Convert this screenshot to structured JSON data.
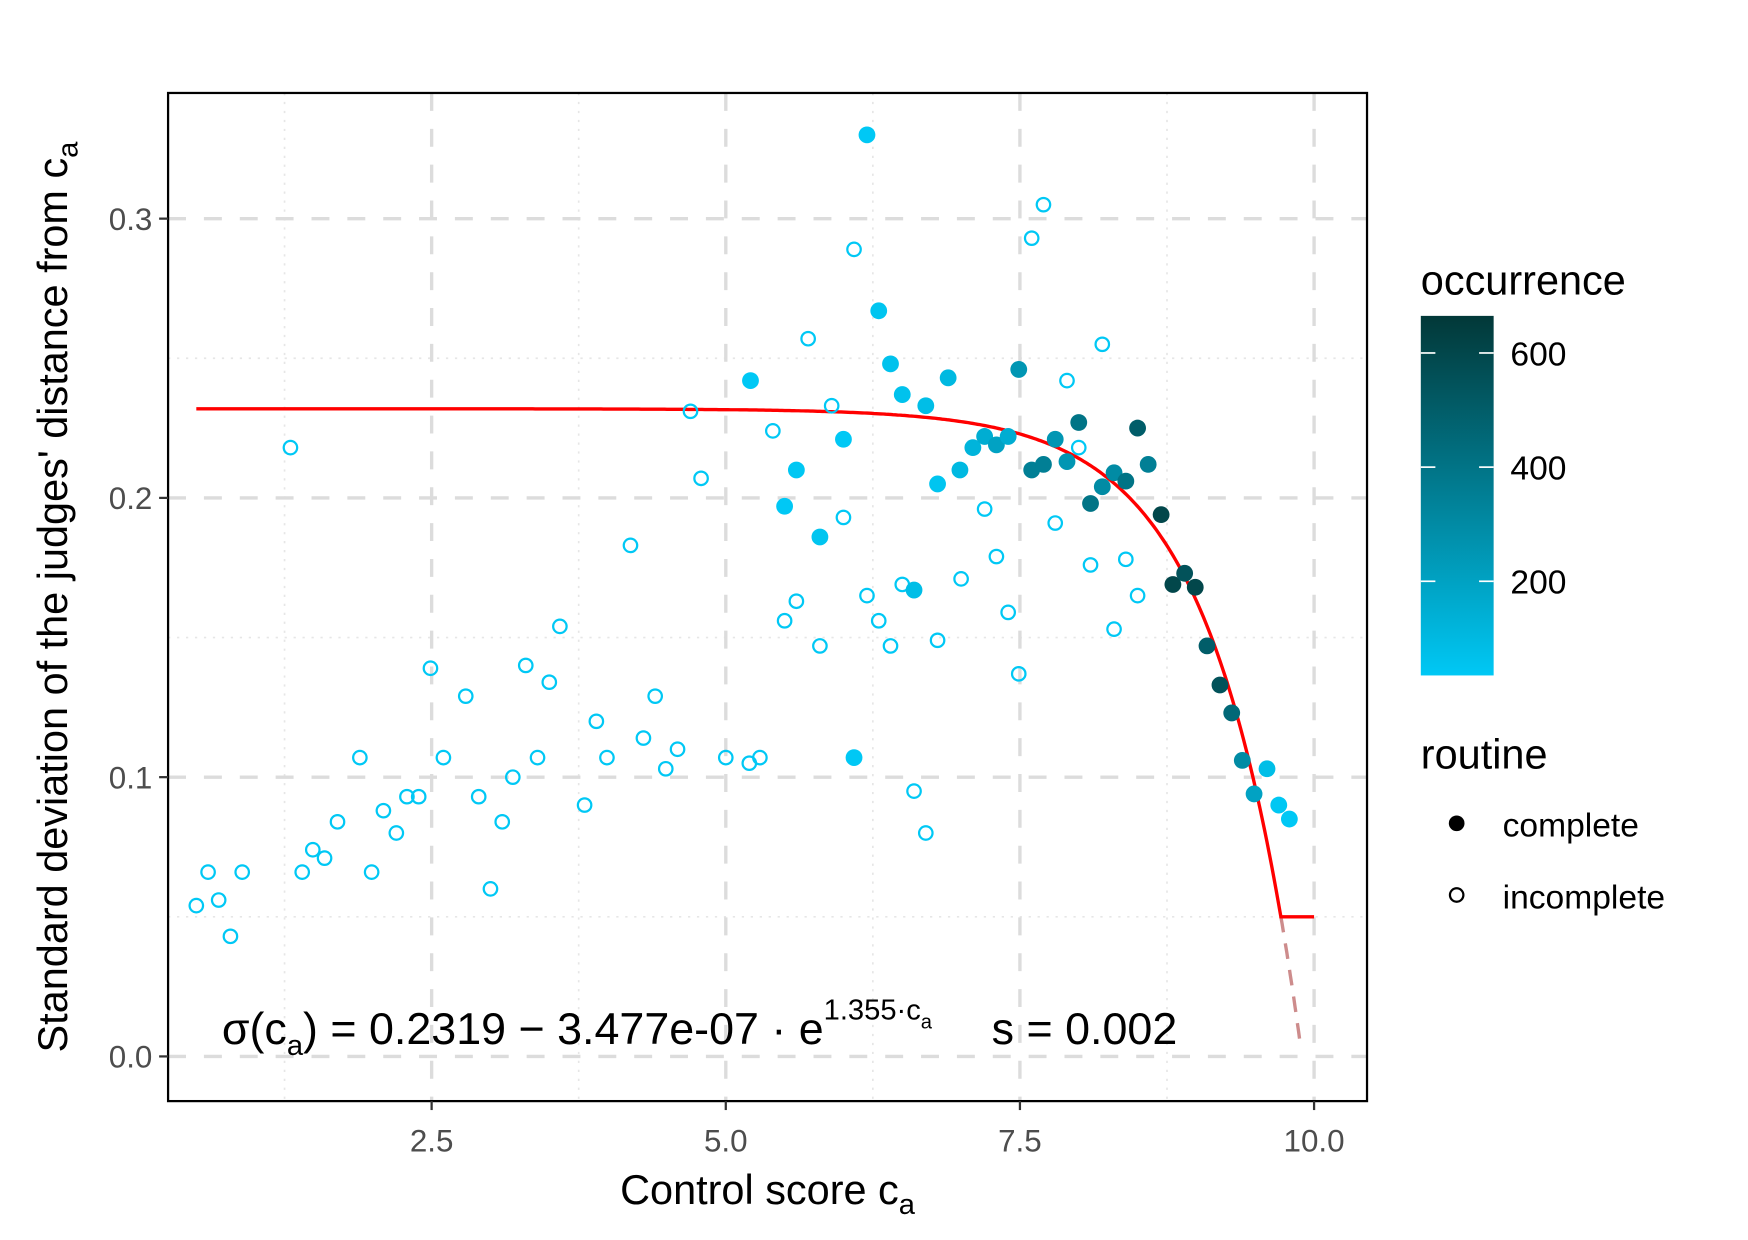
{
  "chart_data": {
    "type": "scatter",
    "xlabel": "Control score c",
    "xlabel_sub": "a",
    "ylabel": "Standard deviation of the judges' distance from c",
    "ylabel_sub": "a",
    "xlim": [
      0.26,
      10.45
    ],
    "ylim": [
      -0.016,
      0.345
    ],
    "x_ticks": [
      2.5,
      5.0,
      7.5,
      10.0
    ],
    "x_tick_labels": [
      "2.5",
      "5.0",
      "7.5",
      "10.0"
    ],
    "y_ticks": [
      0.0,
      0.1,
      0.2,
      0.3
    ],
    "y_tick_labels": [
      "0.0",
      "0.1",
      "0.2",
      "0.3"
    ],
    "grid": true,
    "legend_placement": "right",
    "color_scale": {
      "title": "occurrence",
      "range": [
        35,
        665
      ],
      "low_color": "#00C8F5",
      "high_color": "#023838",
      "ticks": [
        200,
        400,
        600
      ],
      "tick_labels": [
        "200",
        "400",
        "600"
      ]
    },
    "shape_legend": {
      "title": "routine",
      "items": [
        {
          "label": "complete",
          "shape": "filled-circle"
        },
        {
          "label": "incomplete",
          "shape": "open-circle"
        }
      ]
    },
    "fit": {
      "a": 0.2319,
      "b": 3.477e-07,
      "k": 1.355,
      "floor": 0.05,
      "color": "#FF0000",
      "extrapolation_color": "#CD8C8C",
      "x_start": 0.5,
      "x_end": 10.0
    },
    "annotation": {
      "sigma": "σ(c",
      "sigma_sub": "a",
      "body": ") = 0.2319 − 3.477e-07 · e",
      "exp": "1.355·c",
      "exp_sub": "a",
      "s": "s = 0.002"
    },
    "series": [
      {
        "name": "complete",
        "points": [
          [
            6.2,
            0.33,
            30
          ],
          [
            6.3,
            0.267,
            50
          ],
          [
            5.21,
            0.242,
            30
          ],
          [
            6.4,
            0.248,
            60
          ],
          [
            6.89,
            0.243,
            100
          ],
          [
            6.5,
            0.237,
            60
          ],
          [
            6.7,
            0.233,
            80
          ],
          [
            7.49,
            0.246,
            250
          ],
          [
            6.0,
            0.221,
            30
          ],
          [
            5.6,
            0.21,
            40
          ],
          [
            5.5,
            0.197,
            30
          ],
          [
            5.8,
            0.186,
            50
          ],
          [
            6.8,
            0.205,
            50
          ],
          [
            6.99,
            0.21,
            100
          ],
          [
            7.1,
            0.218,
            120
          ],
          [
            7.2,
            0.222,
            150
          ],
          [
            7.3,
            0.219,
            200
          ],
          [
            7.4,
            0.222,
            150
          ],
          [
            7.6,
            0.21,
            350
          ],
          [
            7.7,
            0.212,
            350
          ],
          [
            7.8,
            0.221,
            250
          ],
          [
            7.9,
            0.213,
            250
          ],
          [
            8.0,
            0.227,
            400
          ],
          [
            8.1,
            0.198,
            400
          ],
          [
            8.2,
            0.204,
            300
          ],
          [
            8.3,
            0.209,
            300
          ],
          [
            8.4,
            0.206,
            400
          ],
          [
            8.5,
            0.225,
            500
          ],
          [
            8.59,
            0.212,
            350
          ],
          [
            8.7,
            0.194,
            600
          ],
          [
            8.8,
            0.169,
            600
          ],
          [
            8.9,
            0.173,
            550
          ],
          [
            8.99,
            0.168,
            600
          ],
          [
            9.09,
            0.147,
            500
          ],
          [
            9.2,
            0.133,
            550
          ],
          [
            9.3,
            0.123,
            450
          ],
          [
            9.39,
            0.106,
            300
          ],
          [
            9.49,
            0.094,
            200
          ],
          [
            9.6,
            0.103,
            80
          ],
          [
            9.7,
            0.09,
            40
          ],
          [
            9.79,
            0.085,
            30
          ],
          [
            6.6,
            0.167,
            80
          ],
          [
            6.09,
            0.107,
            30
          ]
        ]
      },
      {
        "name": "incomplete",
        "points": [
          [
            0.5,
            0.054
          ],
          [
            0.6,
            0.066
          ],
          [
            0.69,
            0.056
          ],
          [
            0.79,
            0.043
          ],
          [
            0.89,
            0.066
          ],
          [
            1.3,
            0.218
          ],
          [
            1.4,
            0.066
          ],
          [
            1.49,
            0.074
          ],
          [
            1.59,
            0.071
          ],
          [
            1.7,
            0.084
          ],
          [
            1.89,
            0.107
          ],
          [
            1.99,
            0.066
          ],
          [
            2.09,
            0.088
          ],
          [
            2.2,
            0.08
          ],
          [
            2.29,
            0.093
          ],
          [
            2.39,
            0.093
          ],
          [
            2.49,
            0.139
          ],
          [
            2.6,
            0.107
          ],
          [
            2.79,
            0.129
          ],
          [
            2.9,
            0.093
          ],
          [
            3.0,
            0.06
          ],
          [
            3.1,
            0.084
          ],
          [
            3.19,
            0.1
          ],
          [
            3.3,
            0.14
          ],
          [
            3.4,
            0.107
          ],
          [
            3.5,
            0.134
          ],
          [
            3.59,
            0.154
          ],
          [
            3.8,
            0.09
          ],
          [
            3.9,
            0.12
          ],
          [
            3.99,
            0.107
          ],
          [
            4.19,
            0.183
          ],
          [
            4.3,
            0.114
          ],
          [
            4.4,
            0.129
          ],
          [
            4.49,
            0.103
          ],
          [
            4.59,
            0.11
          ],
          [
            4.7,
            0.231
          ],
          [
            4.79,
            0.207
          ],
          [
            5.0,
            0.107
          ],
          [
            5.2,
            0.105
          ],
          [
            5.29,
            0.107
          ],
          [
            5.4,
            0.224
          ],
          [
            5.5,
            0.156
          ],
          [
            5.6,
            0.163
          ],
          [
            5.7,
            0.257
          ],
          [
            5.8,
            0.147
          ],
          [
            5.9,
            0.233
          ],
          [
            6.0,
            0.193
          ],
          [
            6.09,
            0.289
          ],
          [
            6.2,
            0.165
          ],
          [
            6.3,
            0.156
          ],
          [
            6.4,
            0.147
          ],
          [
            6.5,
            0.169
          ],
          [
            6.6,
            0.095
          ],
          [
            6.7,
            0.08
          ],
          [
            6.8,
            0.149
          ],
          [
            7.0,
            0.171
          ],
          [
            7.2,
            0.196
          ],
          [
            7.3,
            0.179
          ],
          [
            7.4,
            0.159
          ],
          [
            7.49,
            0.137
          ],
          [
            7.6,
            0.293
          ],
          [
            7.7,
            0.305
          ],
          [
            7.8,
            0.191
          ],
          [
            7.9,
            0.242
          ],
          [
            8.0,
            0.218
          ],
          [
            8.1,
            0.176
          ],
          [
            8.2,
            0.255
          ],
          [
            8.3,
            0.153
          ],
          [
            8.4,
            0.178
          ],
          [
            8.5,
            0.165
          ]
        ]
      }
    ]
  }
}
